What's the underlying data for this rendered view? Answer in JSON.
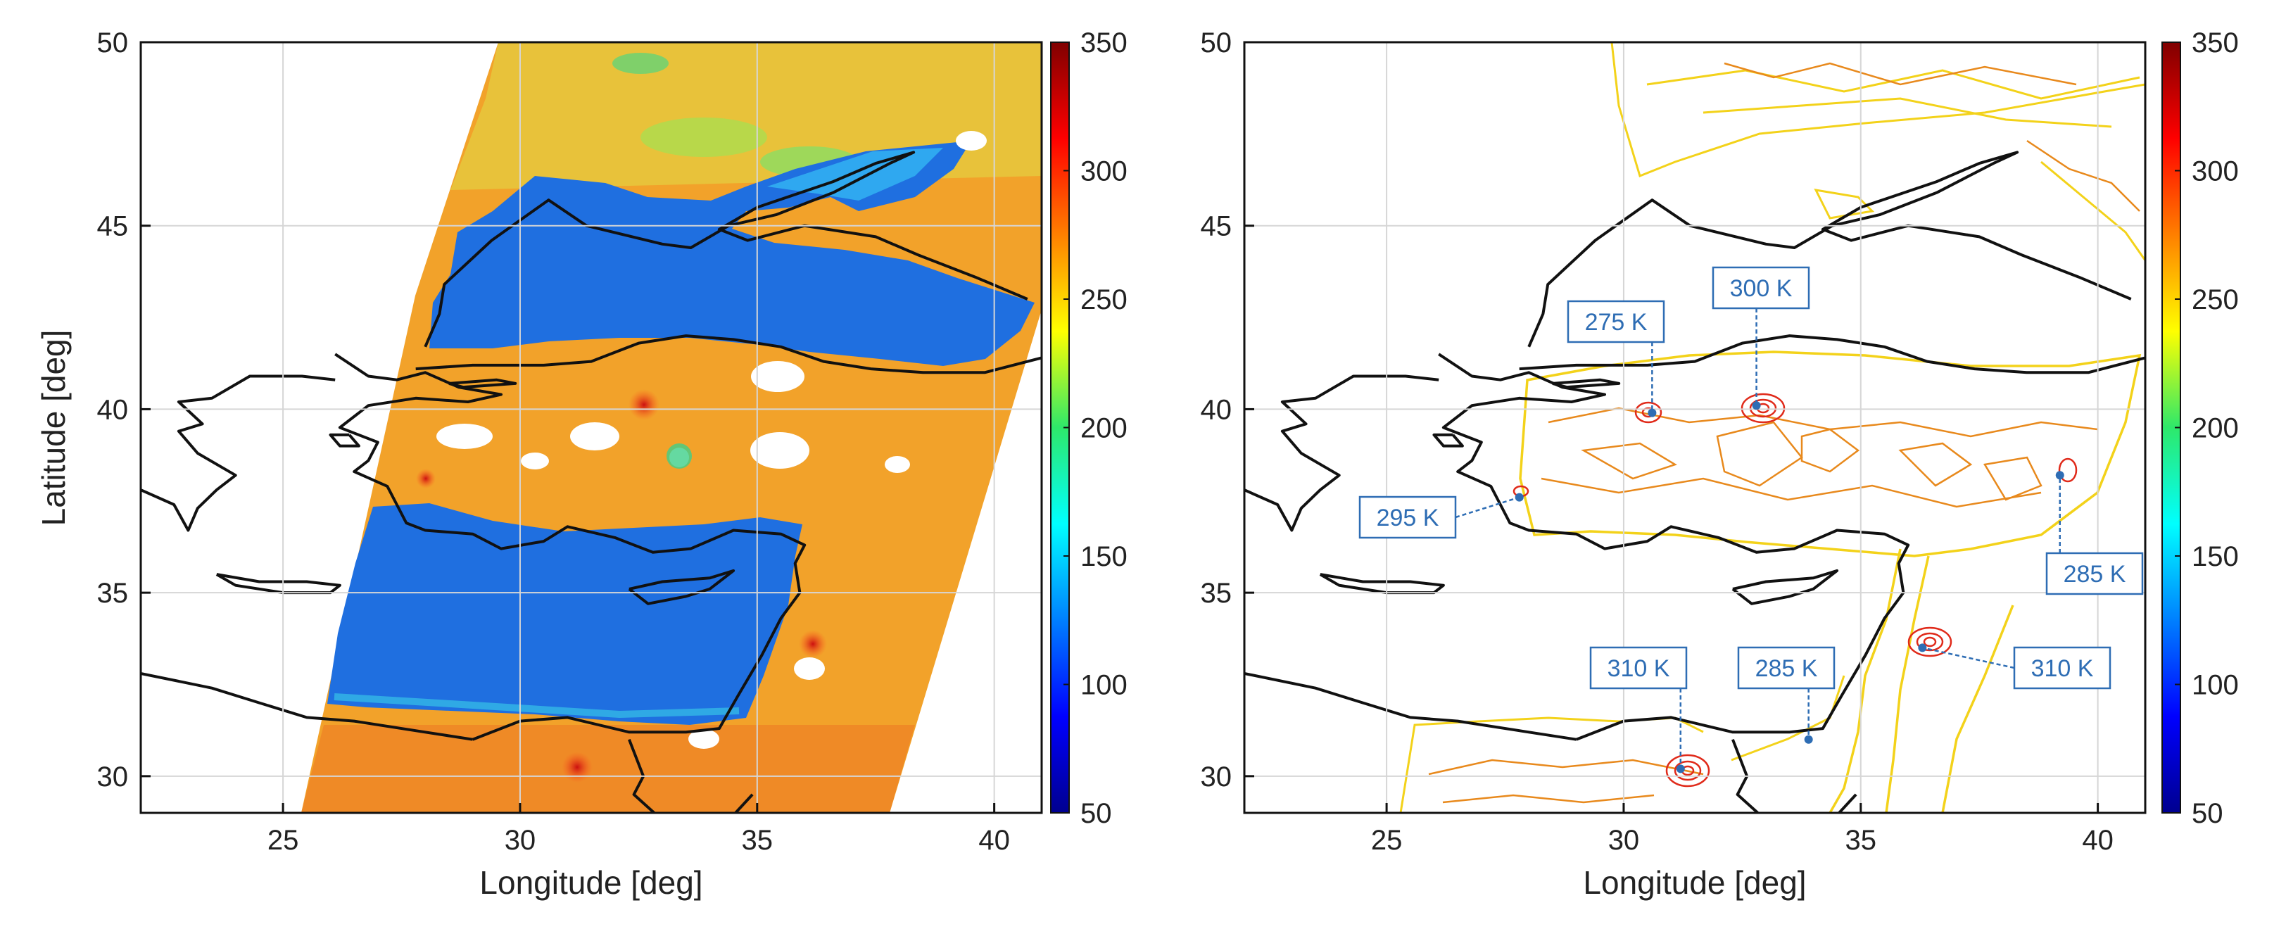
{
  "axes": {
    "xlabel": "Longitude [deg]",
    "ylabel": "Latitude [deg]"
  },
  "colors": {
    "sea": "#1f6fe0",
    "land_warm": "#f2a22a",
    "land_hot": "#e06a1a",
    "contour_outer": "#f3d21a",
    "contour_inner": "#e8891c",
    "hotspot": "#e02a1a",
    "callout": "#2e6db4"
  },
  "chart_data": [
    {
      "type": "heatmap",
      "panel": "left",
      "xlabel": "Longitude [deg]",
      "ylabel": "Latitude [deg]",
      "xlim": [
        22,
        41
      ],
      "ylim": [
        29,
        50
      ],
      "xticks": [
        "25",
        "30",
        "35",
        "40"
      ],
      "yticks": [
        "30",
        "35",
        "40",
        "45",
        "50"
      ],
      "colorbar": {
        "range": [
          50,
          350
        ],
        "ticks": [
          "50",
          "100",
          "150",
          "200",
          "250",
          "300",
          "350"
        ],
        "colormap": "jet"
      },
      "grid": true
    },
    {
      "type": "heatmap",
      "panel": "right",
      "style": "contour",
      "xlabel": "Longitude [deg]",
      "ylabel": "",
      "xlim": [
        22,
        41
      ],
      "ylim": [
        29,
        50
      ],
      "xticks": [
        "25",
        "30",
        "35",
        "40"
      ],
      "yticks": [
        "30",
        "35",
        "40",
        "45",
        "50"
      ],
      "colorbar": {
        "range": [
          50,
          350
        ],
        "ticks": [
          "50",
          "100",
          "150",
          "200",
          "250",
          "300",
          "350"
        ],
        "colormap": "jet"
      },
      "grid": true,
      "annotations": [
        {
          "text": "275 K",
          "lon": 30.6,
          "lat": 39.9
        },
        {
          "text": "300 K",
          "lon": 32.8,
          "lat": 40.1
        },
        {
          "text": "295 K",
          "lon": 27.8,
          "lat": 37.6
        },
        {
          "text": "285 K",
          "lon": 39.2,
          "lat": 38.2
        },
        {
          "text": "310 K",
          "lon": 31.2,
          "lat": 30.2
        },
        {
          "text": "285 K",
          "lon": 33.9,
          "lat": 31.0
        },
        {
          "text": "310 K",
          "lon": 36.3,
          "lat": 33.5
        }
      ]
    }
  ]
}
